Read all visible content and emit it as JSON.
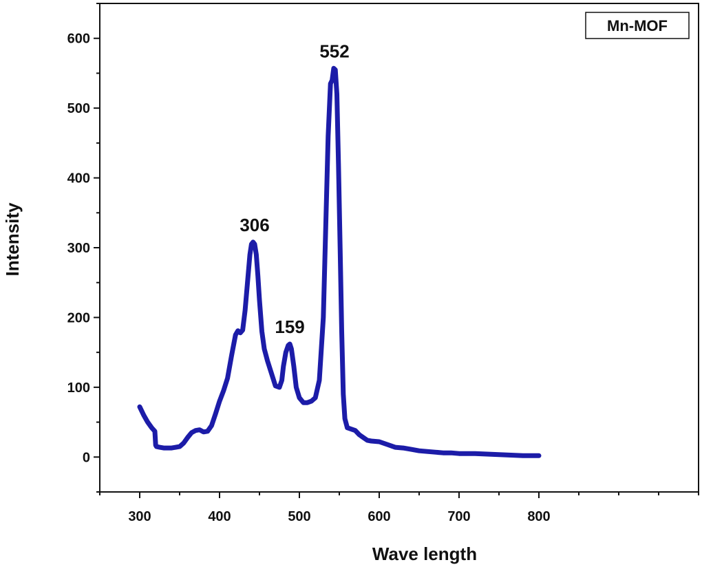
{
  "chart_data": {
    "type": "line",
    "xlabel": "Wave length",
    "ylabel": "Intensity",
    "xlim": [
      250,
      1000
    ],
    "ylim": [
      -50,
      650
    ],
    "x_ticks": [
      300,
      400,
      500,
      600,
      700,
      800
    ],
    "y_ticks": [
      0,
      100,
      200,
      300,
      400,
      500,
      600
    ],
    "grid": false,
    "legend": {
      "position": "top-right",
      "entries": [
        "Mn-MOF"
      ]
    },
    "series": [
      {
        "name": "Mn-MOF",
        "color": "#1c1ca8",
        "x": [
          300,
          305,
          310,
          315,
          319,
          320,
          321,
          325,
          330,
          340,
          350,
          355,
          360,
          365,
          370,
          375,
          380,
          385,
          390,
          395,
          400,
          405,
          410,
          415,
          420,
          423,
          426,
          429,
          432,
          435,
          438,
          440,
          442,
          444,
          446,
          448,
          450,
          453,
          456,
          460,
          465,
          470,
          475,
          478,
          480,
          483,
          486,
          488,
          490,
          493,
          496,
          500,
          505,
          510,
          515,
          520,
          525,
          530,
          533,
          536,
          539,
          541,
          543,
          545,
          547,
          549,
          551,
          553,
          555,
          557,
          560,
          565,
          570,
          575,
          580,
          585,
          590,
          600,
          610,
          620,
          630,
          640,
          650,
          660,
          670,
          680,
          690,
          700,
          720,
          740,
          760,
          780,
          800
        ],
        "y": [
          72,
          60,
          50,
          42,
          37,
          17,
          15,
          14,
          13,
          13,
          15,
          20,
          28,
          35,
          38,
          39,
          36,
          37,
          45,
          62,
          80,
          95,
          113,
          145,
          175,
          181,
          178,
          182,
          210,
          250,
          290,
          305,
          308,
          305,
          290,
          260,
          225,
          180,
          155,
          138,
          120,
          102,
          100,
          110,
          130,
          150,
          160,
          162,
          155,
          130,
          100,
          85,
          78,
          78,
          80,
          85,
          110,
          200,
          330,
          460,
          535,
          540,
          557,
          555,
          520,
          420,
          300,
          180,
          90,
          55,
          42,
          40,
          38,
          32,
          28,
          24,
          23,
          22,
          18,
          14,
          13,
          11,
          9,
          8,
          7,
          6,
          6,
          5,
          5,
          4,
          3,
          2,
          2
        ]
      }
    ],
    "annotations": [
      {
        "text": "306",
        "x": 444,
        "y": 308
      },
      {
        "text": "159",
        "x": 488,
        "y": 162
      },
      {
        "text": "552",
        "x": 544,
        "y": 557
      }
    ]
  }
}
